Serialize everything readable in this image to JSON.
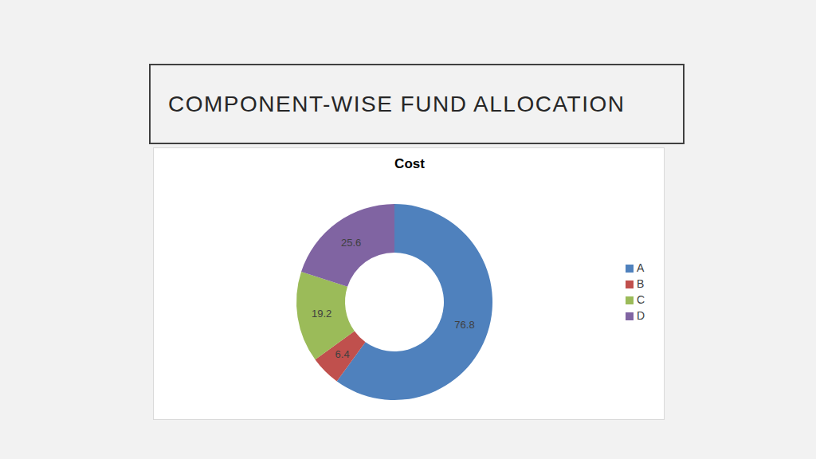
{
  "title": "COMPONENT-WISE FUND ALLOCATION",
  "chart_data": {
    "type": "donut",
    "title": "Cost",
    "categories": [
      "A",
      "B",
      "C",
      "D"
    ],
    "values": [
      76.8,
      6.4,
      19.2,
      25.6
    ],
    "colors": [
      "#4f81bd",
      "#c0504d",
      "#9bbb59",
      "#8064a2"
    ],
    "data_labels": true,
    "legend": "right"
  }
}
